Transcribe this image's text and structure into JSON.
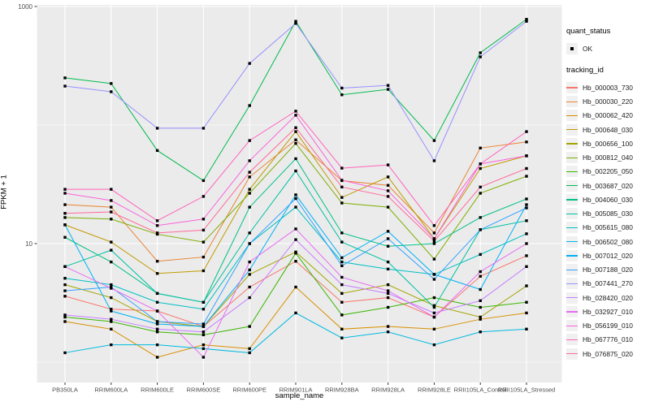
{
  "chart_data": {
    "type": "line",
    "title": "",
    "xlabel": "sample_name",
    "ylabel": "FPKM + 1",
    "y_scale": "log10",
    "y_major_ticks": [
      {
        "label": "10",
        "value": 10
      },
      {
        "label": "1000",
        "value": 1000
      }
    ],
    "y_minor_ticks": [
      1,
      100
    ],
    "ylim": [
      0.7,
      1150
    ],
    "grid": "on",
    "legend_position": "right",
    "panel_bg": "#EBEBEB",
    "grid_color": "#FFFFFF",
    "tick_label_color": "#4D4D4D",
    "point_color": "#000000",
    "categories": [
      "PB350LA",
      "RRIM600LA",
      "RRIM600LE",
      "RRIM600SE",
      "RRIM600PE",
      "RRIM901LA",
      "RRIM928BA",
      "RRIM928LA",
      "RRIM928LE",
      "RRII105LA_Control",
      "RRII105LA_Stressed"
    ],
    "series": [
      {
        "name": "Hb_000003_730",
        "color": "#F8766D",
        "values": [
          3.6,
          2.8,
          2.7,
          2.0,
          4.3,
          7.1,
          3.2,
          3.5,
          2.4,
          5.3,
          7.9
        ]
      },
      {
        "name": "Hb_000030_220",
        "color": "#EA8331",
        "values": [
          21.3,
          20.3,
          7.1,
          7.7,
          36.5,
          75,
          34,
          31,
          12.3,
          64,
          72
        ]
      },
      {
        "name": "Hb_000062_420",
        "color": "#D89000",
        "values": [
          2.2,
          1.9,
          1.1,
          1.4,
          1.3,
          4.3,
          1.9,
          2.0,
          1.9,
          2.3,
          2.6
        ]
      },
      {
        "name": "Hb_000648_030",
        "color": "#C09B00",
        "values": [
          14.4,
          10.3,
          5.6,
          5.9,
          28.7,
          88,
          24.5,
          36.5,
          11.0,
          43,
          55
        ]
      },
      {
        "name": "Hb_000656_100",
        "color": "#A3A500",
        "values": [
          4.5,
          3.5,
          2.2,
          2.0,
          5.5,
          8.5,
          3.8,
          4.5,
          3.0,
          2.4,
          4.4
        ]
      },
      {
        "name": "Hb_000812_040",
        "color": "#7CAE00",
        "values": [
          16.6,
          16.1,
          12.0,
          10.3,
          26.6,
          70,
          22,
          20.3,
          7.4,
          26.6,
          37
        ]
      },
      {
        "name": "Hb_002205_050",
        "color": "#39B600",
        "values": [
          2.4,
          2.2,
          1.8,
          1.7,
          2.0,
          8.3,
          2.5,
          2.9,
          3.5,
          2.9,
          3.2
        ]
      },
      {
        "name": "Hb_003687_020",
        "color": "#00BB4E",
        "values": [
          250,
          224,
          61,
          34,
          146,
          750,
          180,
          200,
          74,
          407,
          780
        ]
      },
      {
        "name": "Hb_004060_030",
        "color": "#00C087",
        "values": [
          11.3,
          7.0,
          3.8,
          3.2,
          20.3,
          52,
          12.3,
          9.5,
          10.0,
          16.6,
          23.8
        ]
      },
      {
        "name": "Hb_005085_030",
        "color": "#00C1A3",
        "values": [
          6.4,
          8.8,
          3.8,
          3.2,
          12.3,
          41,
          10.3,
          7.0,
          2.9,
          13.1,
          15.6
        ]
      },
      {
        "name": "Hb_005615_080",
        "color": "#00BFC4",
        "values": [
          5.1,
          4.5,
          3.2,
          2.8,
          10.0,
          20.3,
          7.0,
          6.1,
          5.5,
          8.1,
          12.1
        ]
      },
      {
        "name": "Hb_006502_080",
        "color": "#00BAE0",
        "values": [
          1.2,
          1.4,
          1.4,
          1.3,
          1.2,
          2.6,
          1.6,
          1.8,
          1.4,
          1.8,
          1.9
        ]
      },
      {
        "name": "Hb_007012_020",
        "color": "#00B0F6",
        "values": [
          14.4,
          2.7,
          2.1,
          2.0,
          6.0,
          25.8,
          7.6,
          12.7,
          5.5,
          4.1,
          21.3
        ]
      },
      {
        "name": "Hb_007188_020",
        "color": "#35A2FF",
        "values": [
          4.0,
          4.3,
          2.2,
          2.1,
          10.0,
          24.0,
          6.5,
          11.0,
          5.0,
          13.1,
          20.0
        ]
      },
      {
        "name": "Hb_007441_270",
        "color": "#9590FF",
        "values": [
          213,
          191,
          94,
          94,
          331,
          720,
          205,
          216,
          50,
          376,
          750
        ]
      },
      {
        "name": "Hb_028420_020",
        "color": "#C77CFF",
        "values": [
          2.5,
          2.3,
          1.9,
          1.8,
          3.5,
          10.8,
          4.5,
          3.8,
          2.6,
          3.3,
          6.4
        ]
      },
      {
        "name": "Hb_032927_010",
        "color": "#E76BF3",
        "values": [
          6.4,
          4.2,
          2.7,
          1.1,
          7.0,
          13.3,
          5.2,
          4.0,
          2.4,
          5.8,
          10.0
        ]
      },
      {
        "name": "Hb_056199_010",
        "color": "#FA62DB",
        "values": [
          26.6,
          23.1,
          14.2,
          16.1,
          50,
          121,
          34.2,
          27.9,
          11.0,
          47,
          55
        ]
      },
      {
        "name": "Hb_067776_010",
        "color": "#FF62BC",
        "values": [
          28.7,
          28.7,
          15.6,
          25.0,
          74,
          131,
          43.3,
          46.1,
          14.2,
          47,
          88
        ]
      },
      {
        "name": "Hb_076875_020",
        "color": "#FF6A98",
        "values": [
          18.0,
          18.5,
          12.3,
          13.0,
          40,
          95,
          30,
          25,
          10.5,
          30,
          43
        ]
      }
    ]
  },
  "legend": {
    "quant_status": {
      "title": "quant_status",
      "value": "OK"
    },
    "tracking_id": {
      "title": "tracking_id"
    }
  }
}
